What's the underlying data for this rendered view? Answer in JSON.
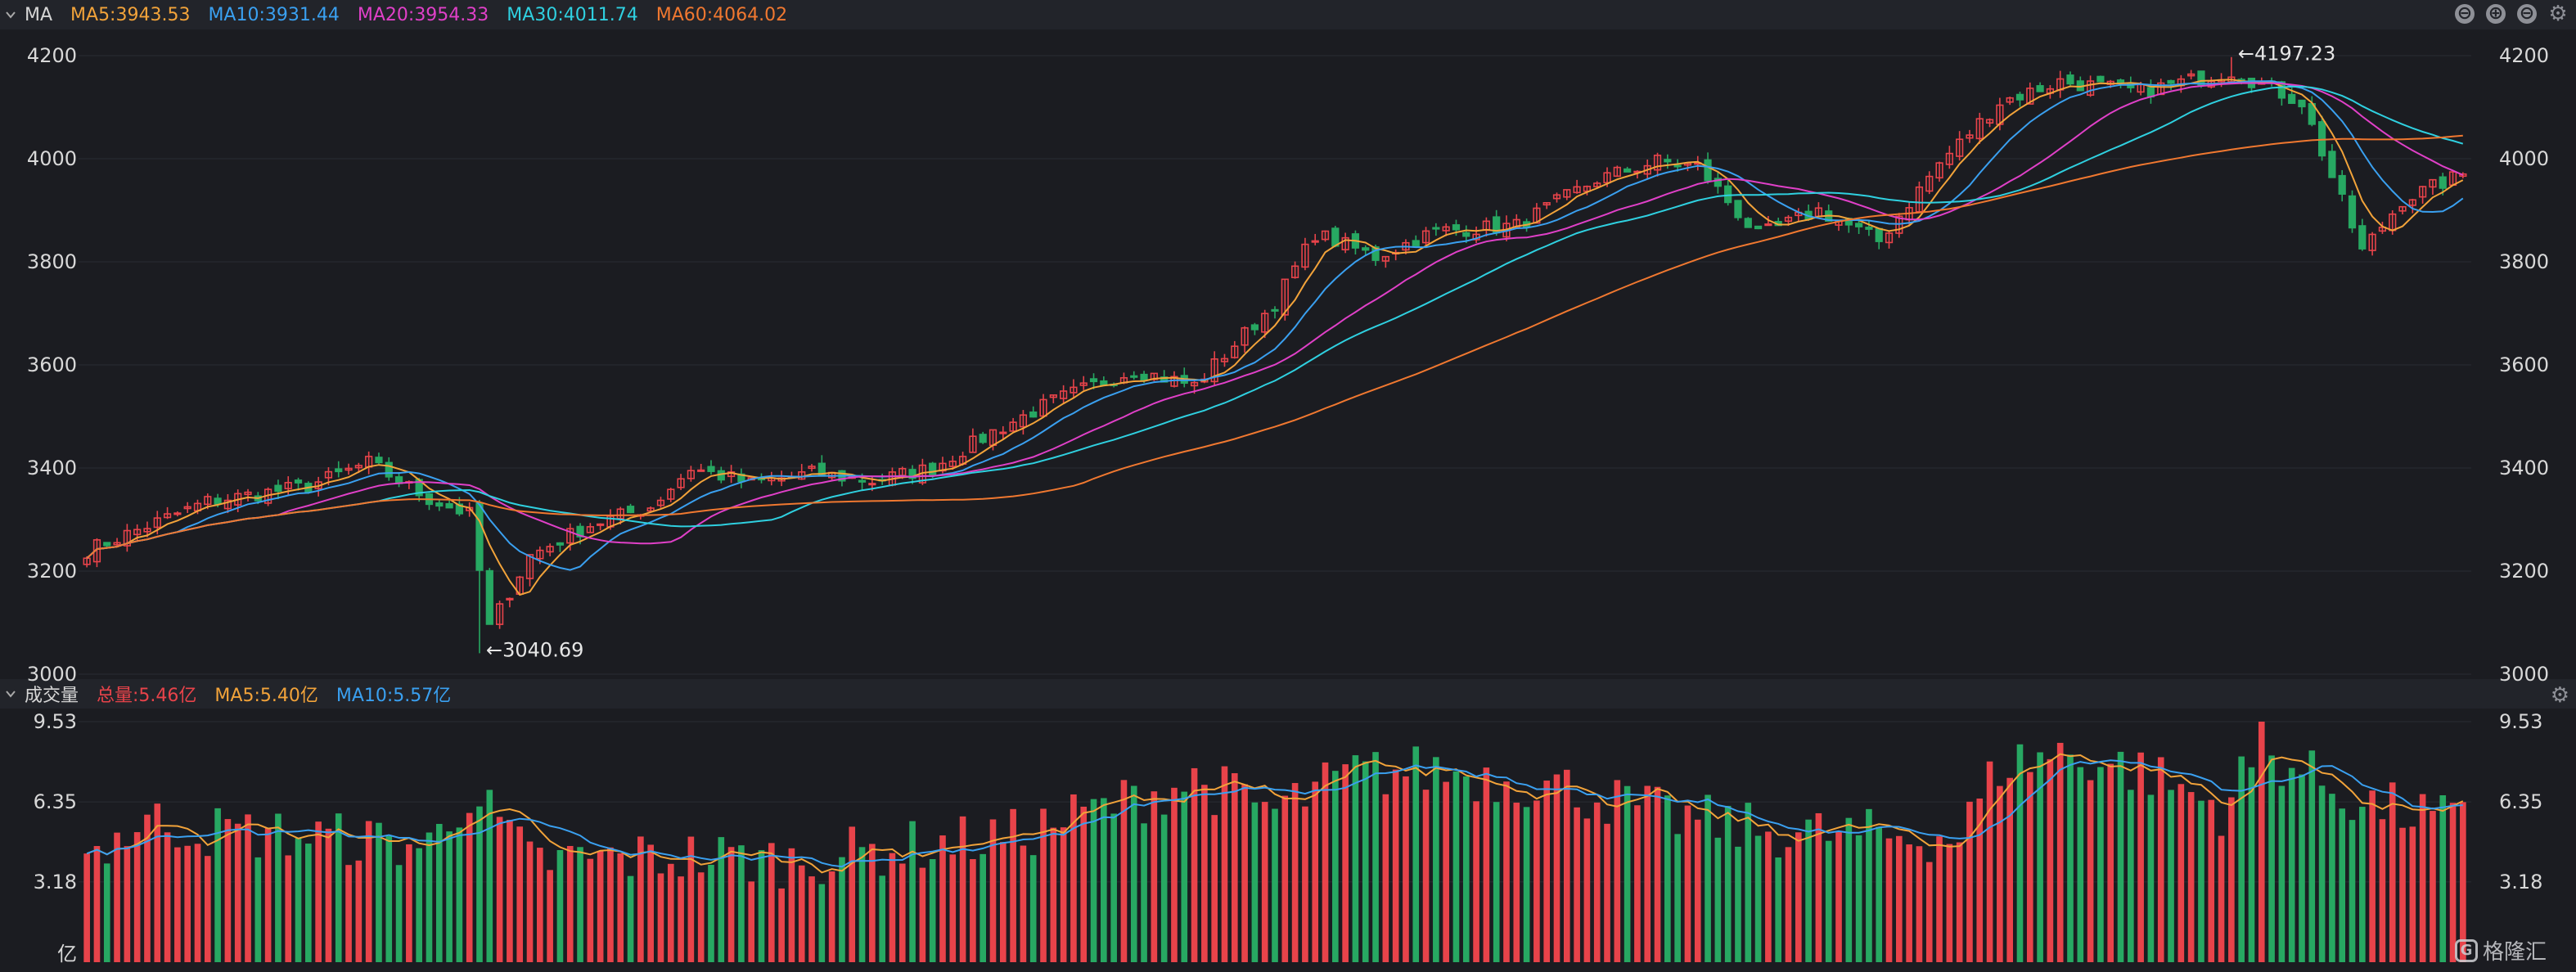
{
  "price_panel": {
    "title": "MA",
    "ma_labels": [
      {
        "text": "MA5:3943.53",
        "color": "#f2a33a"
      },
      {
        "text": "MA10:3931.44",
        "color": "#3aa0f0"
      },
      {
        "text": "MA20:3954.33",
        "color": "#e040c8"
      },
      {
        "text": "MA30:4011.74",
        "color": "#2fd0e0"
      },
      {
        "text": "MA60:4064.02",
        "color": "#f07830"
      }
    ],
    "controls": [
      "⊖",
      "⊕",
      "⊖"
    ]
  },
  "volume_panel": {
    "title": "成交量",
    "labels": [
      {
        "text": "总量:5.46亿",
        "color": "#e8434a"
      },
      {
        "text": "MA5:5.40亿",
        "color": "#f2a33a"
      },
      {
        "text": "MA10:5.57亿",
        "color": "#3aa0f0"
      }
    ]
  },
  "colors": {
    "up": "#e8434a",
    "down": "#27a862",
    "background": "#1b1c21",
    "grid": "#2a2c33",
    "axis_text": "#d8d8d8"
  },
  "watermark": {
    "text": "格隆汇",
    "icon": "G"
  },
  "chart_data": [
    {
      "type": "candlestick",
      "title": "",
      "y_ticks": [
        "4200",
        "4000",
        "3800",
        "3600",
        "3400",
        "3200",
        "3000"
      ],
      "ylim": [
        3000,
        4200
      ],
      "grid": true,
      "annotations": [
        {
          "text": "←4197.23",
          "index": 213,
          "value": 4197.23
        },
        {
          "text": "←3040.69",
          "index": 39,
          "value": 3040.69
        }
      ],
      "close_anchors": [
        [
          0,
          3240
        ],
        [
          12,
          3335
        ],
        [
          22,
          3365
        ],
        [
          28,
          3410
        ],
        [
          34,
          3340
        ],
        [
          38,
          3310
        ],
        [
          40,
          3090
        ],
        [
          44,
          3230
        ],
        [
          50,
          3290
        ],
        [
          56,
          3325
        ],
        [
          60,
          3400
        ],
        [
          66,
          3370
        ],
        [
          72,
          3390
        ],
        [
          78,
          3375
        ],
        [
          84,
          3400
        ],
        [
          90,
          3470
        ],
        [
          96,
          3530
        ],
        [
          104,
          3590
        ],
        [
          110,
          3560
        ],
        [
          118,
          3720
        ],
        [
          122,
          3855
        ],
        [
          128,
          3810
        ],
        [
          134,
          3860
        ],
        [
          142,
          3870
        ],
        [
          150,
          3960
        ],
        [
          156,
          3995
        ],
        [
          160,
          3985
        ],
        [
          166,
          3850
        ],
        [
          172,
          3900
        ],
        [
          178,
          3840
        ],
        [
          184,
          3990
        ],
        [
          190,
          4110
        ],
        [
          196,
          4150
        ],
        [
          204,
          4130
        ],
        [
          213,
          4170
        ],
        [
          220,
          4110
        ],
        [
          226,
          3820
        ],
        [
          230,
          3920
        ],
        [
          236,
          3970
        ]
      ],
      "series": [
        {
          "name": "MA5",
          "color": "#f2a33a",
          "period": 5
        },
        {
          "name": "MA10",
          "color": "#3aa0f0",
          "period": 10
        },
        {
          "name": "MA20",
          "color": "#e040c8",
          "period": 20
        },
        {
          "name": "MA30",
          "color": "#2fd0e0",
          "period": 30
        },
        {
          "name": "MA60",
          "color": "#f07830",
          "period": 60
        }
      ],
      "bar_count": 237
    },
    {
      "type": "bar",
      "title": "",
      "y_ticks": [
        "9.53",
        "6.35",
        "3.18",
        "亿"
      ],
      "ylim": [
        0,
        9.53
      ],
      "series": [
        {
          "name": "MA5",
          "color": "#f2a33a",
          "period": 5
        },
        {
          "name": "MA10",
          "color": "#3aa0f0",
          "period": 10
        }
      ],
      "volume_anchors": [
        [
          0,
          4.3
        ],
        [
          6,
          5.6
        ],
        [
          12,
          5.2
        ],
        [
          22,
          5.0
        ],
        [
          34,
          4.6
        ],
        [
          38,
          6.8
        ],
        [
          44,
          4.0
        ],
        [
          60,
          4.2
        ],
        [
          70,
          4.0
        ],
        [
          80,
          4.5
        ],
        [
          92,
          5.0
        ],
        [
          100,
          6.0
        ],
        [
          110,
          7.2
        ],
        [
          118,
          6.0
        ],
        [
          126,
          7.5
        ],
        [
          134,
          7.6
        ],
        [
          146,
          7.0
        ],
        [
          156,
          5.9
        ],
        [
          166,
          5.2
        ],
        [
          178,
          5.0
        ],
        [
          186,
          5.0
        ],
        [
          190,
          7.8
        ],
        [
          196,
          8.3
        ],
        [
          204,
          7.6
        ],
        [
          212,
          6.1
        ],
        [
          216,
          8.4
        ],
        [
          226,
          6.3
        ],
        [
          236,
          5.5
        ]
      ]
    }
  ]
}
